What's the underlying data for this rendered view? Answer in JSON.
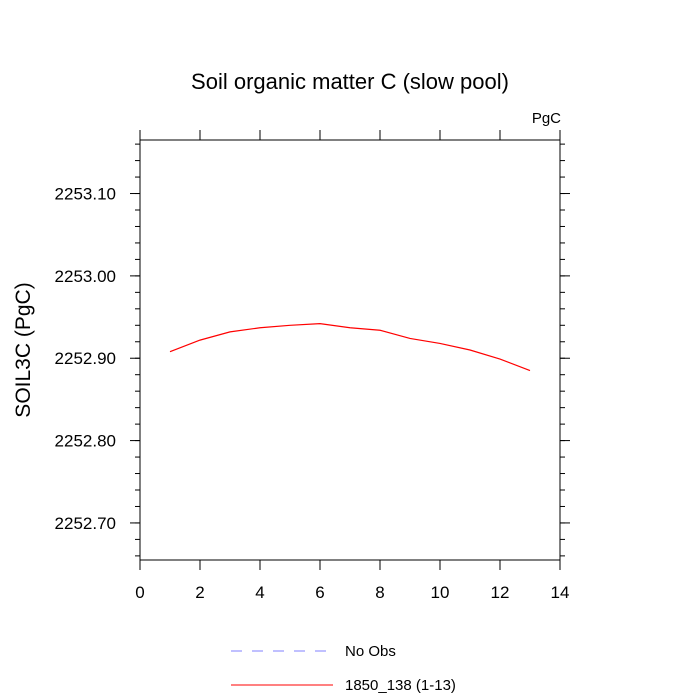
{
  "chart_data": {
    "type": "line",
    "title": "Soil organic matter C (slow pool)",
    "units_label": "PgC",
    "ylabel": "SOIL3C  (PgC)",
    "xlabel": "",
    "xlim": [
      0,
      14
    ],
    "ylim": [
      2252.655,
      2253.165
    ],
    "x_ticks": [
      0,
      2,
      4,
      6,
      8,
      10,
      12,
      14
    ],
    "y_ticks": [
      2252.7,
      2252.8,
      2252.9,
      2253.0,
      2253.1
    ],
    "y_tick_labels": [
      "2252.70",
      "2252.80",
      "2252.90",
      "2253.00",
      "2253.10"
    ],
    "grid": false,
    "legend_placement": "bottom",
    "series": [
      {
        "name": "No Obs",
        "color": "#8080ff",
        "dash": true,
        "x": [],
        "y": []
      },
      {
        "name": "1850_138 (1-13)",
        "color": "#ff0000",
        "dash": false,
        "x": [
          1,
          2,
          3,
          4,
          5,
          6,
          7,
          8,
          9,
          10,
          11,
          12,
          13
        ],
        "y": [
          2252.908,
          2252.922,
          2252.932,
          2252.937,
          2252.94,
          2252.942,
          2252.937,
          2252.934,
          2252.924,
          2252.918,
          2252.91,
          2252.899,
          2252.885
        ]
      }
    ]
  }
}
